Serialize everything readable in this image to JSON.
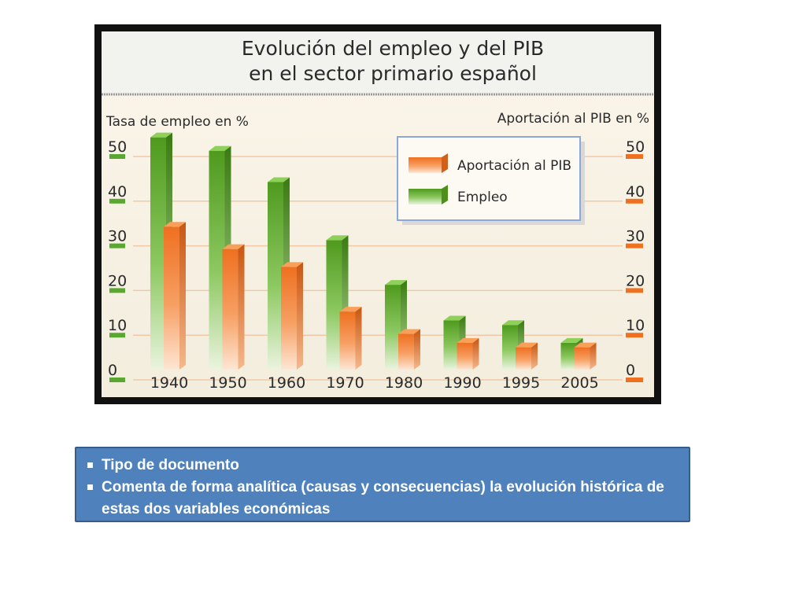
{
  "chart_data": {
    "type": "bar",
    "title_lines": [
      "Evolución del empleo y del PIB",
      "en el sector primario español"
    ],
    "ylabel_left": "Tasa de empleo en %",
    "ylabel_right": "Aportación al PIB en %",
    "categories": [
      "1940",
      "1950",
      "1960",
      "1970",
      "1980",
      "1990",
      "1995",
      "2005"
    ],
    "series": [
      {
        "name": "Empleo",
        "color": "#6aaa2e",
        "values": [
          52,
          49,
          42,
          29,
          19,
          11,
          10,
          6
        ]
      },
      {
        "name": "Aportación al PIB",
        "color": "#f07a28",
        "values": [
          32,
          27,
          23,
          13,
          8,
          6,
          5,
          5
        ]
      }
    ],
    "legend_order": [
      "Aportación al PIB",
      "Empleo"
    ],
    "legend_position": "top-right",
    "yticks": [
      0,
      10,
      20,
      30,
      40,
      50
    ],
    "ylim": [
      0,
      52
    ],
    "grid": true
  },
  "text_box": {
    "items": [
      "Tipo de documento",
      "Comenta de forma analítica (causas y consecuencias) la evolución histórica de estas dos variables económicas"
    ]
  }
}
